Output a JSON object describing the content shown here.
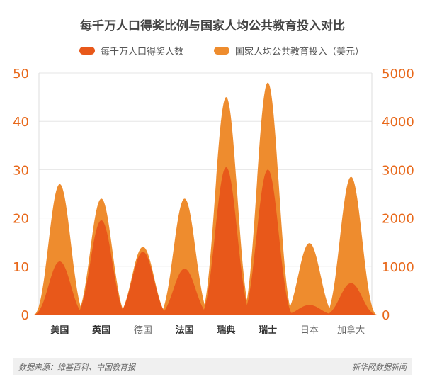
{
  "chart_data": {
    "type": "area",
    "title": "每千万人口得奖比例与国家人均公共教育投入对比",
    "categories": [
      "美国",
      "英国",
      "德国",
      "法国",
      "瑞典",
      "瑞士",
      "日本",
      "加拿大"
    ],
    "categories_bold": [
      true,
      true,
      false,
      true,
      true,
      true,
      false,
      false
    ],
    "series": [
      {
        "name": "每千万人口得奖人数",
        "axis": "left",
        "values": [
          11,
          19.5,
          13,
          9.5,
          30.5,
          30,
          2,
          6.5
        ],
        "color": "#E8581A"
      },
      {
        "name": "国家人均公共教育投入（美元）",
        "axis": "right",
        "values": [
          2700,
          2400,
          1400,
          2400,
          4500,
          4800,
          1480,
          2850
        ],
        "color": "#EE8C2E"
      }
    ],
    "y_left": {
      "min": 0,
      "max": 50,
      "ticks": [
        0,
        10,
        20,
        30,
        40,
        50
      ]
    },
    "y_right": {
      "min": 0,
      "max": 5000,
      "ticks": [
        0,
        1000,
        2000,
        3000,
        4000,
        5000
      ]
    },
    "axis_color": "#E8681A",
    "grid": true,
    "legend_position": "top"
  },
  "footer": {
    "source": "数据来源：维基百科、中国教育报",
    "brand": "新华网数据新闻"
  }
}
